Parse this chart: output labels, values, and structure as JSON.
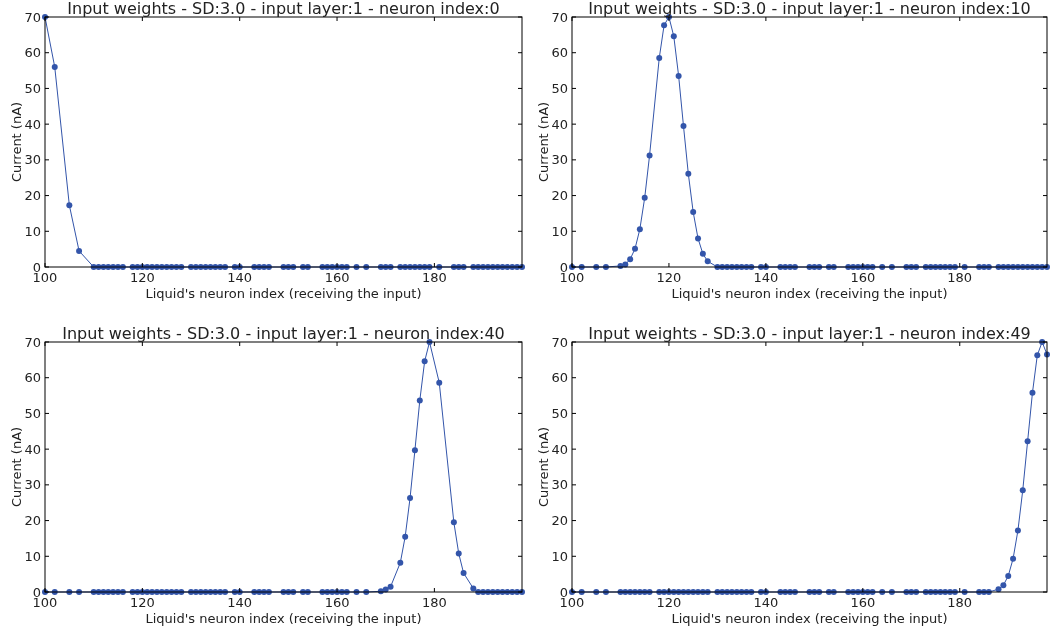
{
  "chart_data": [
    {
      "type": "line",
      "title": "Input weights - SD:3.0 - input layer:1 - neuron index:0",
      "xlabel": "Liquid's neuron index (receiving the input)",
      "ylabel": "Current (nA)",
      "marker": "circle",
      "xlim": [
        100,
        198
      ],
      "xticks": [
        100,
        120,
        140,
        160,
        180
      ],
      "ylim": [
        0,
        70
      ],
      "yticks": [
        0,
        10,
        20,
        30,
        40,
        50,
        60,
        70
      ],
      "grid": false,
      "x": [
        100,
        102,
        105,
        107,
        110,
        111,
        112,
        113,
        114,
        115,
        116,
        118,
        119,
        120,
        121,
        122,
        123,
        124,
        125,
        126,
        127,
        128,
        130,
        131,
        132,
        133,
        134,
        135,
        136,
        137,
        139,
        140,
        143,
        144,
        145,
        146,
        149,
        150,
        151,
        153,
        154,
        157,
        158,
        159,
        160,
        161,
        162,
        164,
        166,
        169,
        170,
        171,
        173,
        174,
        175,
        176,
        177,
        178,
        179,
        181,
        184,
        185,
        186,
        188,
        189,
        190,
        191,
        192,
        193,
        194,
        195,
        196,
        197,
        198
      ],
      "series": [
        {
          "color": "#3355aa",
          "values": [
            70,
            56,
            17.3,
            4.5,
            0,
            0,
            0,
            0,
            0,
            0,
            0,
            0,
            0,
            0,
            0,
            0,
            0,
            0,
            0,
            0,
            0,
            0,
            0,
            0,
            0,
            0,
            0,
            0,
            0,
            0,
            0,
            0,
            0,
            0,
            0,
            0,
            0,
            0,
            0,
            0,
            0,
            0,
            0,
            0,
            0,
            0,
            0,
            0,
            0,
            0,
            0,
            0,
            0,
            0,
            0,
            0,
            0,
            0,
            0,
            0,
            0,
            0,
            0,
            0,
            0,
            0,
            0,
            0,
            0,
            0,
            0,
            0,
            0,
            0
          ]
        }
      ]
    },
    {
      "type": "line",
      "title": "Input weights - SD:3.0 - input layer:1 - neuron index:10",
      "xlabel": "Liquid's neuron index (receiving the input)",
      "ylabel": "Current (nA)",
      "marker": "circle",
      "xlim": [
        100,
        198
      ],
      "xticks": [
        100,
        120,
        140,
        160,
        180
      ],
      "ylim": [
        0,
        70
      ],
      "yticks": [
        0,
        10,
        20,
        30,
        40,
        50,
        60,
        70
      ],
      "grid": false,
      "x": [
        100,
        102,
        105,
        107,
        110,
        111,
        112,
        113,
        114,
        115,
        116,
        118,
        119,
        120,
        121,
        122,
        123,
        124,
        125,
        126,
        127,
        128,
        130,
        131,
        132,
        133,
        134,
        135,
        136,
        137,
        139,
        140,
        143,
        144,
        145,
        146,
        149,
        150,
        151,
        153,
        154,
        157,
        158,
        159,
        160,
        161,
        162,
        164,
        166,
        169,
        170,
        171,
        173,
        174,
        175,
        176,
        177,
        178,
        179,
        181,
        184,
        185,
        186,
        188,
        189,
        190,
        191,
        192,
        193,
        194,
        195,
        196,
        197,
        198
      ],
      "series": [
        {
          "color": "#3355aa",
          "values": [
            0,
            0,
            0,
            0,
            0.3,
            0.7,
            2.2,
            5.1,
            10.6,
            19.4,
            31.2,
            58.5,
            67.7,
            70,
            64.6,
            53.5,
            39.5,
            26.1,
            15.4,
            8.0,
            3.7,
            1.6,
            0,
            0,
            0,
            0,
            0,
            0,
            0,
            0,
            0,
            0,
            0,
            0,
            0,
            0,
            0,
            0,
            0,
            0,
            0,
            0,
            0,
            0,
            0,
            0,
            0,
            0,
            0,
            0,
            0,
            0,
            0,
            0,
            0,
            0,
            0,
            0,
            0,
            0,
            0,
            0,
            0,
            0,
            0,
            0,
            0,
            0,
            0,
            0,
            0,
            0,
            0,
            0
          ]
        }
      ]
    },
    {
      "type": "line",
      "title": "Input weights - SD:3.0 - input layer:1 - neuron index:40",
      "xlabel": "Liquid's neuron index (receiving the input)",
      "ylabel": "Current (nA)",
      "marker": "circle",
      "xlim": [
        100,
        198
      ],
      "xticks": [
        100,
        120,
        140,
        160,
        180
      ],
      "ylim": [
        0,
        70
      ],
      "yticks": [
        0,
        10,
        20,
        30,
        40,
        50,
        60,
        70
      ],
      "grid": false,
      "x": [
        100,
        102,
        105,
        107,
        110,
        111,
        112,
        113,
        114,
        115,
        116,
        118,
        119,
        120,
        121,
        122,
        123,
        124,
        125,
        126,
        127,
        128,
        130,
        131,
        132,
        133,
        134,
        135,
        136,
        137,
        139,
        140,
        143,
        144,
        145,
        146,
        149,
        150,
        151,
        153,
        154,
        157,
        158,
        159,
        160,
        161,
        162,
        164,
        166,
        169,
        170,
        171,
        173,
        174,
        175,
        176,
        177,
        178,
        179,
        181,
        184,
        185,
        186,
        188,
        189,
        190,
        191,
        192,
        193,
        194,
        195,
        196,
        197,
        198
      ],
      "series": [
        {
          "color": "#3355aa",
          "values": [
            0,
            0,
            0,
            0,
            0,
            0,
            0,
            0,
            0,
            0,
            0,
            0,
            0,
            0,
            0,
            0,
            0,
            0,
            0,
            0,
            0,
            0,
            0,
            0,
            0,
            0,
            0,
            0,
            0,
            0,
            0,
            0,
            0,
            0,
            0,
            0,
            0,
            0,
            0,
            0,
            0,
            0,
            0,
            0,
            0,
            0,
            0,
            0,
            0,
            0.2,
            0.7,
            1.5,
            8.2,
            15.5,
            26.3,
            39.7,
            53.6,
            64.6,
            70,
            58.6,
            19.5,
            10.8,
            5.3,
            1.0,
            0,
            0,
            0,
            0,
            0,
            0,
            0,
            0,
            0,
            0
          ]
        }
      ]
    },
    {
      "type": "line",
      "title": "Input weights - SD:3.0 - input layer:1 - neuron index:49",
      "xlabel": "Liquid's neuron index (receiving the input)",
      "ylabel": "Current (nA)",
      "marker": "circle",
      "xlim": [
        100,
        198
      ],
      "xticks": [
        100,
        120,
        140,
        160,
        180
      ],
      "ylim": [
        0,
        70
      ],
      "yticks": [
        0,
        10,
        20,
        30,
        40,
        50,
        60,
        70
      ],
      "grid": false,
      "x": [
        100,
        102,
        105,
        107,
        110,
        111,
        112,
        113,
        114,
        115,
        116,
        118,
        119,
        120,
        121,
        122,
        123,
        124,
        125,
        126,
        127,
        128,
        130,
        131,
        132,
        133,
        134,
        135,
        136,
        137,
        139,
        140,
        143,
        144,
        145,
        146,
        149,
        150,
        151,
        153,
        154,
        157,
        158,
        159,
        160,
        161,
        162,
        164,
        166,
        169,
        170,
        171,
        173,
        174,
        175,
        176,
        177,
        178,
        179,
        181,
        184,
        185,
        186,
        188,
        189,
        190,
        191,
        192,
        193,
        194,
        195,
        196,
        197,
        198
      ],
      "series": [
        {
          "color": "#3355aa",
          "values": [
            0,
            0,
            0,
            0,
            0,
            0,
            0,
            0,
            0,
            0,
            0,
            0,
            0,
            0,
            0,
            0,
            0,
            0,
            0,
            0,
            0,
            0,
            0,
            0,
            0,
            0,
            0,
            0,
            0,
            0,
            0,
            0,
            0,
            0,
            0,
            0,
            0,
            0,
            0,
            0,
            0,
            0,
            0,
            0,
            0,
            0,
            0,
            0,
            0,
            0,
            0,
            0,
            0,
            0,
            0,
            0,
            0,
            0,
            0,
            0,
            0,
            0,
            0,
            0.8,
            1.9,
            4.5,
            9.3,
            17.2,
            28.5,
            42.2,
            55.8,
            66.3,
            70,
            66.5
          ]
        }
      ]
    }
  ]
}
